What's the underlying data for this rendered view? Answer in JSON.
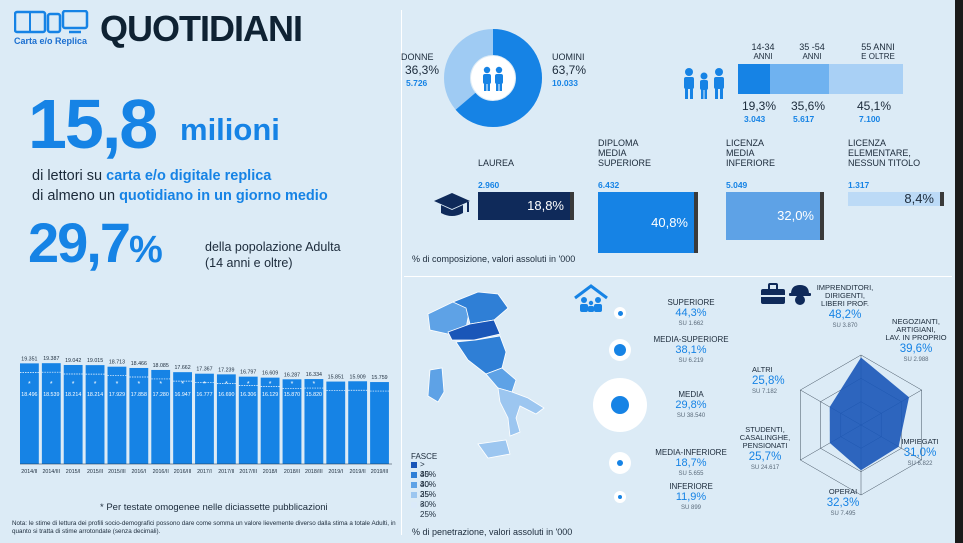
{
  "header": {
    "logo_text": "Carta e/o Replica",
    "title": "QUOTIDIANI"
  },
  "headline": {
    "number": "15,8",
    "unit": "milioni",
    "line1_pre": "di lettori su ",
    "line1_bold": "carta e/o digitale replica",
    "line2_pre": "di almeno un ",
    "line2_bold": "quotidiano in un giorno medio",
    "pct": "29,7",
    "pct_sign": "%",
    "pct_desc1": "della popolazione Adulta",
    "pct_desc2": "(14 anni e oltre)"
  },
  "chart_data": {
    "type": "bar",
    "categories": [
      "2014/II",
      "2014/III",
      "2015/I",
      "2015/II",
      "2015/III",
      "2016/I",
      "2016/II",
      "2016/III",
      "2017/I",
      "2017/II",
      "2017/III",
      "2018/I",
      "2018/II",
      "2018/III",
      "2019/I",
      "2019/II",
      "2019/III"
    ],
    "series": [
      {
        "values": [
          19351,
          19387,
          19042,
          19015,
          18713,
          18466,
          18085,
          17662,
          17367,
          17239,
          16797,
          16609,
          16287,
          16334,
          15851,
          15909,
          15759
        ]
      },
      {
        "values": [
          18496,
          18539,
          18214,
          18214,
          17929,
          17858,
          17280,
          16947,
          16777,
          16690,
          16306,
          16129,
          15870,
          15820,
          null,
          null,
          null
        ]
      }
    ],
    "ylim": [
      0,
      20000
    ]
  },
  "chart_labels": {
    "top": [
      "19.351",
      "19.387",
      "19.042",
      "19.015",
      "18.713",
      "18.466",
      "18.085",
      "17.662",
      "17.367",
      "17.239",
      "16.797",
      "16.609",
      "16.287",
      "16.334",
      "15.851",
      "15.909",
      "15.759"
    ],
    "inner": [
      "18.496",
      "18.539",
      "18.214",
      "18.214",
      "17.929",
      "17.858",
      "17.280",
      "16.947",
      "16.777",
      "16.690",
      "16.306",
      "16.129",
      "15.870",
      "15.820",
      "",
      "",
      ""
    ],
    "star": "*"
  },
  "footnote": "* Per testate omogenee nelle diciassette pubblicazioni",
  "note": "Nota: le stime di lettura dei profili socio-demografici possono dare come somma un valore lievemente diverso dalla stima a totale Adulti, in quanto si tratta di stime arrotondate (senza decimali).",
  "gender": {
    "female_label": "DONNE",
    "female_pct": "36,3%",
    "female_abs": "5.726",
    "female_value": 36.3,
    "male_label": "UOMINI",
    "male_pct": "63,7%",
    "male_abs": "10.033",
    "male_value": 63.7
  },
  "age": [
    {
      "label1": "14-34",
      "label2": "ANNI",
      "pct": "19,3%",
      "abs": "3.043",
      "value": 19.3
    },
    {
      "label1": "35 -54",
      "label2": "ANNI",
      "pct": "35,6%",
      "abs": "5.617",
      "value": 35.6
    },
    {
      "label1": "55 ANNI",
      "label2": "E OLTRE",
      "pct": "45,1%",
      "abs": "7.100",
      "value": 45.1
    }
  ],
  "education": [
    {
      "label": "LAUREA",
      "abs": "2.960",
      "pct": "18,8%",
      "value": 18.8
    },
    {
      "label": "DIPLOMA\nMEDIA\nSUPERIORE",
      "abs": "6.432",
      "pct": "40,8%",
      "value": 40.8
    },
    {
      "label": "LICENZA\nMEDIA\nINFERIORE",
      "abs": "5.049",
      "pct": "32,0%",
      "value": 32.0
    },
    {
      "label": "LICENZA\nELEMENTARE,\nNESSUN TITOLO",
      "abs": "1.317",
      "pct": "8,4%",
      "value": 8.4
    }
  ],
  "composition_caption": "% di composizione, valori assoluti in '000",
  "legend": {
    "title": "FASCE",
    "items": [
      "> 40%",
      "35-40%",
      "30-35%",
      "25-30%",
      "< 25%"
    ],
    "colors": [
      "#1a56b8",
      "#2f7fd6",
      "#5ea2e6",
      "#9cc6f0",
      "#dbeaf9"
    ]
  },
  "classes": [
    {
      "label": "SUPERIORE",
      "pct": "44,3%",
      "su": "SU 1.662",
      "value": 44.3
    },
    {
      "label": "MEDIA-SUPERIORE",
      "pct": "38,1%",
      "su": "SU 6.219",
      "value": 38.1
    },
    {
      "label": "MEDIA",
      "pct": "29,8%",
      "su": "SU 38.540",
      "value": 29.8
    },
    {
      "label": "MEDIA-INFERIORE",
      "pct": "18,7%",
      "su": "SU 5.655",
      "value": 18.7
    },
    {
      "label": "INFERIORE",
      "pct": "11,9%",
      "su": "SU 899",
      "value": 11.9
    }
  ],
  "professions": [
    {
      "label": "IMPRENDITORI,\nDIRIGENTI,\nLIBERI PROF.",
      "pct": "48,2%",
      "su": "SU 3.870",
      "value": 48.2
    },
    {
      "label": "NEGOZIANTI,\nARTIGIANI,\nLAV. IN PROPRIO",
      "pct": "39,6%",
      "su": "SU 2.988",
      "value": 39.6
    },
    {
      "label": "IMPIEGATI",
      "pct": "31,0%",
      "su": "SU 6.822",
      "value": 31.0
    },
    {
      "label": "OPERAI",
      "pct": "32,3%",
      "su": "SU 7.495",
      "value": 32.3
    },
    {
      "label": "STUDENTI,\nCASALINGHE,\nPENSIONATI",
      "pct": "25,7%",
      "su": "SU 24.617",
      "value": 25.7
    },
    {
      "label": "ALTRI",
      "pct": "25,8%",
      "su": "SU 7.182",
      "value": 25.8
    }
  ],
  "penetration_caption": "% di penetrazione, valori assoluti in '000",
  "colors": {
    "accent": "#1683e5",
    "dark": "#0f2a5a",
    "background": "#dcebf6"
  }
}
